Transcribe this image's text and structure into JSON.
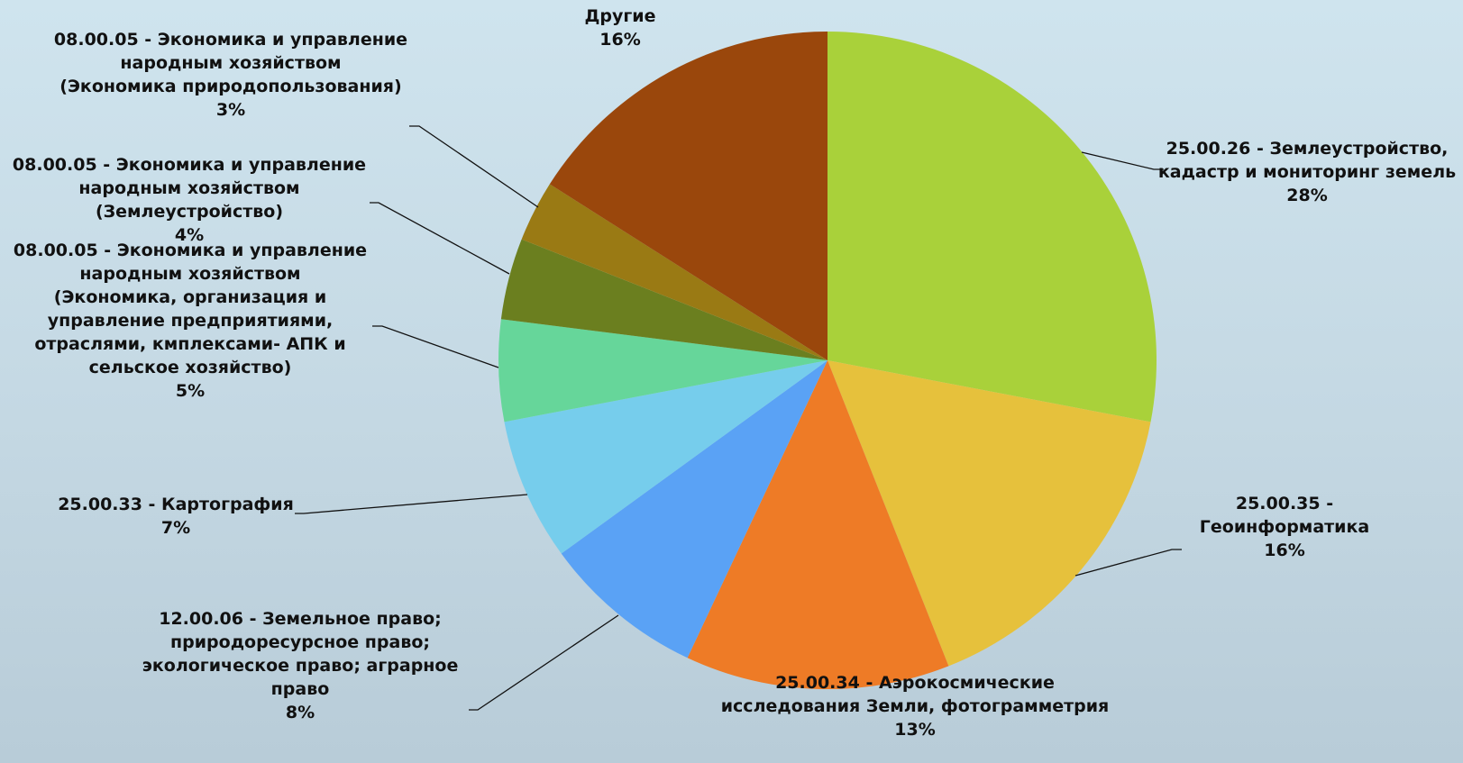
{
  "chart_data": {
    "type": "pie",
    "start_angle": "12 o'clock",
    "direction": "clockwise",
    "slices": [
      {
        "label": "25.00.26 - Землеустройство,\nкадастр и мониторинг земель",
        "value": 28,
        "value_label": "28%",
        "color": "#a9d13a"
      },
      {
        "label": "25.00.35 -\nГеоинформатика",
        "value": 16,
        "value_label": "16%",
        "color": "#e6c13c"
      },
      {
        "label": "25.00.34 - Аэрокосмические\nисследования Земли, фотограмметрия",
        "value": 13,
        "value_label": "13%",
        "color": "#ee7b26"
      },
      {
        "label": "12.00.06 - Земельное право;\nприродоресурсное право;\nэкологическое право; аграрное\nправо",
        "value": 8,
        "value_label": "8%",
        "color": "#5aa2f5"
      },
      {
        "label": "25.00.33 - Картография",
        "value": 7,
        "value_label": "7%",
        "color": "#76cdec"
      },
      {
        "label": "08.00.05 - Экономика и управление\nнародным хозяйством\n(Экономика, организация и\nуправление предприятиями,\nотраслями, кмплексами- АПК и\nсельское хозяйство)",
        "value": 5,
        "value_label": "5%",
        "color": "#66d69a"
      },
      {
        "label": "08.00.05 - Экономика и управление\nнародным хозяйством\n(Землеустройство)",
        "value": 4,
        "value_label": "4%",
        "color": "#6b7f1f"
      },
      {
        "label": "08.00.05 - Экономика и управление\nнародным хозяйством\n(Экономика природопользования)",
        "value": 3,
        "value_label": "3%",
        "color": "#9a7a14"
      },
      {
        "label": "Другие",
        "value": 16,
        "value_label": "16%",
        "color": "#9a470c"
      }
    ]
  }
}
